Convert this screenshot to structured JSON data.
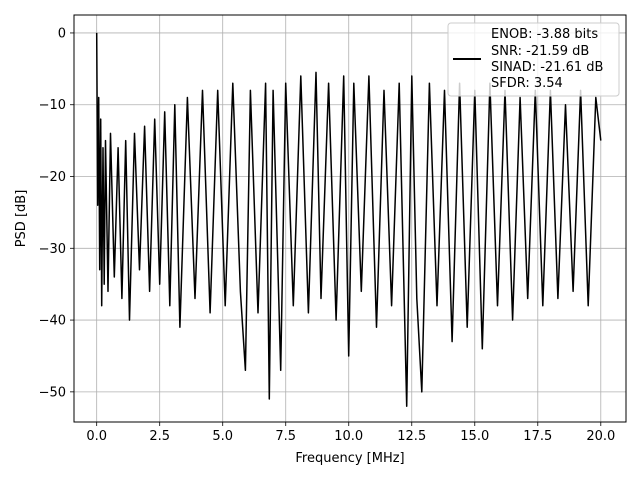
{
  "chart_data": {
    "type": "line",
    "xlabel": "Frequency [MHz]",
    "ylabel": "PSD [dB]",
    "xlim": [
      -0.9,
      21.0
    ],
    "ylim": [
      -54.2,
      2.5
    ],
    "xticks": [
      0.0,
      2.5,
      5.0,
      7.5,
      10.0,
      12.5,
      15.0,
      17.5,
      20.0
    ],
    "xtick_labels": [
      "0.0",
      "2.5",
      "5.0",
      "7.5",
      "10.0",
      "12.5",
      "15.0",
      "17.5",
      "20.0"
    ],
    "yticks": [
      0,
      -10,
      -20,
      -30,
      -40,
      -50
    ],
    "ytick_labels": [
      "0",
      "−10",
      "−20",
      "−30",
      "−40",
      "−50"
    ],
    "grid": true,
    "legend_position": "top-right",
    "legend": {
      "line_color": "#000000",
      "entries": [
        "ENOB: -3.88 bits",
        "SNR: -21.59 dB",
        "SINAD: -21.61 dB",
        "SFDR: 3.54"
      ]
    },
    "series": [
      {
        "color": "#000000",
        "x": [
          0.0,
          0.04,
          0.08,
          0.12,
          0.16,
          0.2,
          0.25,
          0.3,
          0.35,
          0.45,
          0.55,
          0.7,
          0.85,
          1.0,
          1.15,
          1.3,
          1.5,
          1.7,
          1.9,
          2.1,
          2.3,
          2.5,
          2.7,
          2.9,
          3.1,
          3.3,
          3.6,
          3.9,
          4.2,
          4.5,
          4.8,
          5.1,
          5.4,
          5.7,
          5.9,
          6.1,
          6.4,
          6.7,
          6.85,
          7.0,
          7.3,
          7.5,
          7.8,
          8.1,
          8.4,
          8.7,
          8.9,
          9.2,
          9.5,
          9.8,
          10.0,
          10.2,
          10.5,
          10.8,
          11.1,
          11.4,
          11.7,
          12.0,
          12.3,
          12.5,
          12.7,
          12.9,
          13.2,
          13.5,
          13.8,
          14.1,
          14.4,
          14.7,
          15.0,
          15.3,
          15.6,
          15.9,
          16.2,
          16.5,
          16.8,
          17.1,
          17.4,
          17.7,
          18.0,
          18.3,
          18.6,
          18.9,
          19.2,
          19.5,
          19.8,
          20.0
        ],
        "y": [
          0,
          -24,
          -9,
          -33,
          -12,
          -38,
          -16,
          -35,
          -15,
          -36,
          -14,
          -34,
          -16,
          -37,
          -15,
          -40,
          -14,
          -33,
          -13,
          -36,
          -12,
          -35,
          -11,
          -38,
          -10,
          -41,
          -9,
          -37,
          -8,
          -39,
          -8,
          -38,
          -7,
          -36,
          -47,
          -8,
          -39,
          -7,
          -51,
          -8,
          -47,
          -7,
          -38,
          -6,
          -39,
          -5.5,
          -37,
          -7,
          -40,
          -6,
          -45,
          -7,
          -36,
          -6,
          -41,
          -8,
          -38,
          -7,
          -52,
          -6,
          -37,
          -50,
          -7,
          -38,
          -8,
          -43,
          -7,
          -41,
          -8,
          -44,
          -7,
          -38,
          -8,
          -40,
          -9,
          -37,
          -8,
          -38,
          -8,
          -37,
          -10,
          -36,
          -8,
          -38,
          -9,
          -15
        ]
      }
    ]
  }
}
